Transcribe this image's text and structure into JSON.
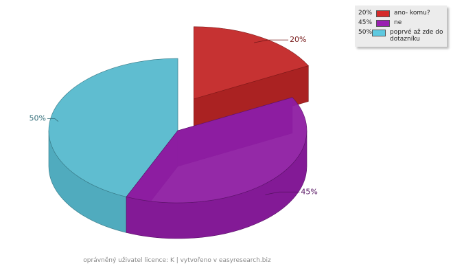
{
  "chart_data": {
    "type": "pie3d",
    "categories": [
      "ano- komu?",
      "ne",
      "poprvé až zde do dotazníku"
    ],
    "values": [
      20,
      45,
      50
    ],
    "value_labels": [
      "20%",
      "45%",
      "50%"
    ],
    "colors": [
      "#d42a2a",
      "#9a1fb0",
      "#5ec9e0"
    ],
    "legend": "top-right",
    "footer": "oprávněný uživatel licence: K | vytvořeno v easyresearch.biz"
  }
}
